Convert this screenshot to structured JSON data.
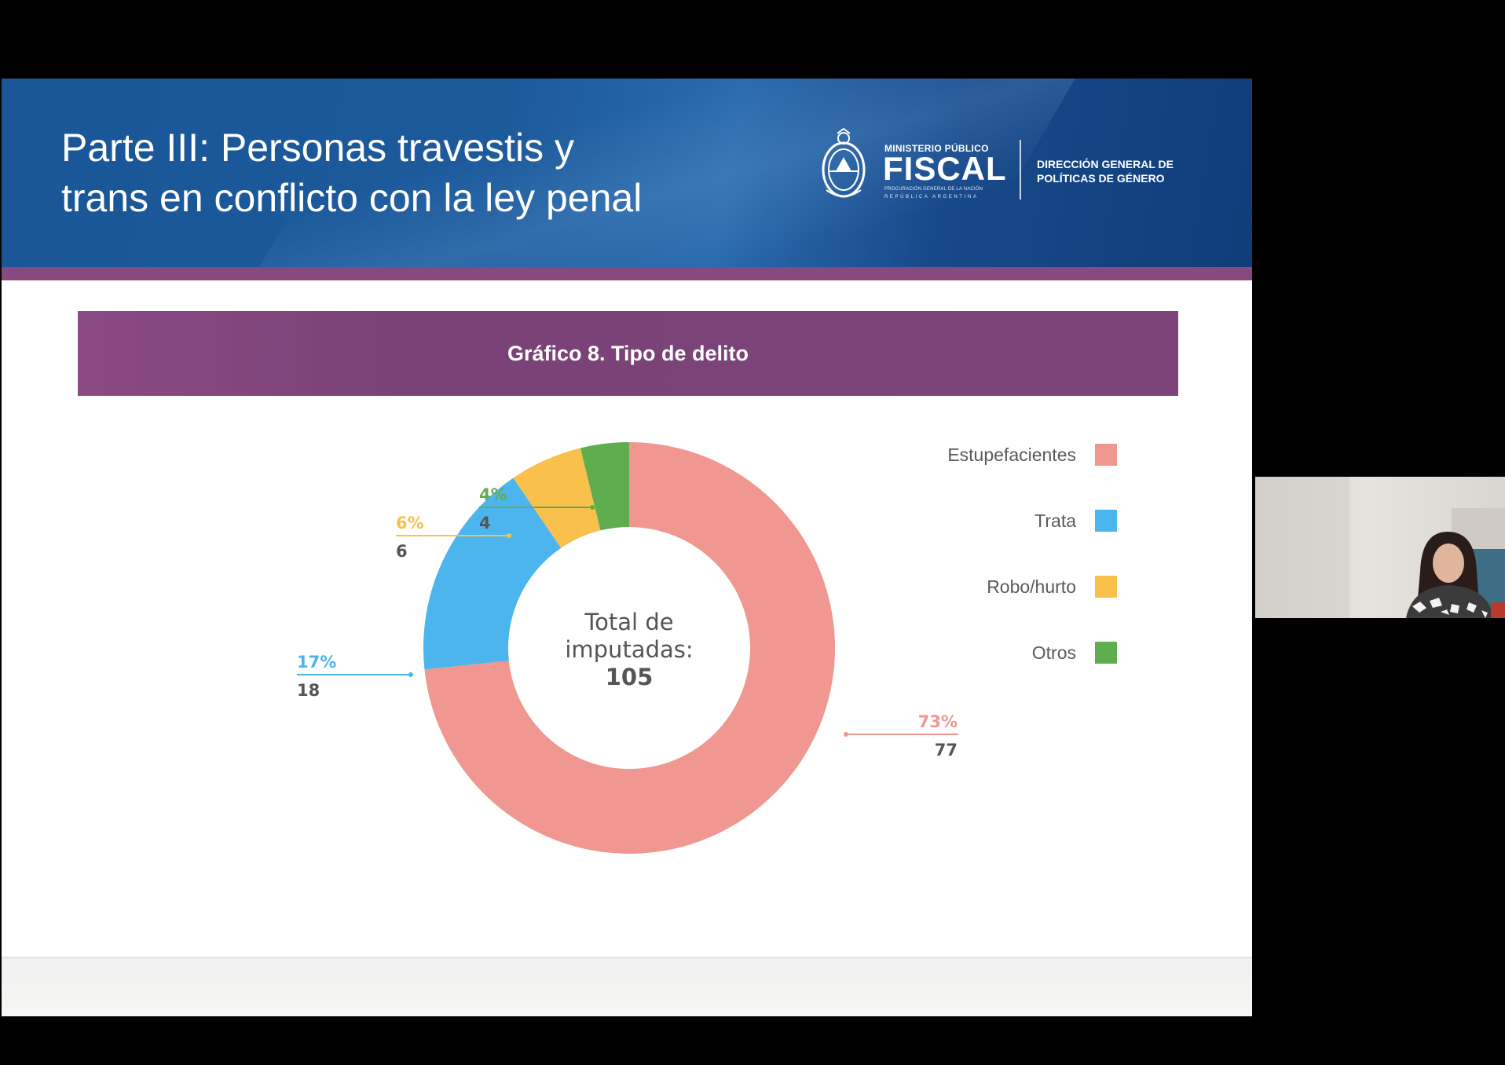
{
  "slide": {
    "title_lines": [
      "Parte III: Personas travestis y",
      "trans en conflicto con la ley penal"
    ],
    "logo": {
      "ministerio": "MINISTERIO PÚBLICO",
      "fiscal": "FISCAL",
      "procuracion": "PROCURACIÓN GENERAL DE LA NACIÓN",
      "republica": "REPÚBLICA ARGENTINA",
      "direccion_lines": [
        "DIRECCIÓN GENERAL DE",
        "POLÍTICAS DE GÉNERO"
      ]
    },
    "chart_title": "Gráfico 8. Tipo de delito"
  },
  "chart_data": {
    "type": "pie",
    "title": "Gráfico 8. Tipo de delito",
    "center_label_lines": [
      "Total de",
      "imputadas:"
    ],
    "center_total": "105",
    "legend_placement": "right",
    "slices": [
      {
        "name": "Estupefacientes",
        "value": 77,
        "percent_label": "73%",
        "color": "#ef9790"
      },
      {
        "name": "Trata",
        "value": 18,
        "percent_label": "17%",
        "color": "#4cb5ee"
      },
      {
        "name": "Robo/hurto",
        "value": 6,
        "percent_label": "6%",
        "color": "#f9c04c"
      },
      {
        "name": "Otros",
        "value": 4,
        "percent_label": "4%",
        "color": "#5fad4e"
      }
    ]
  },
  "colors": {
    "header_blue": "#1a5697",
    "header_stripe": "#874a7f",
    "banner_purple": "#7c4478"
  }
}
